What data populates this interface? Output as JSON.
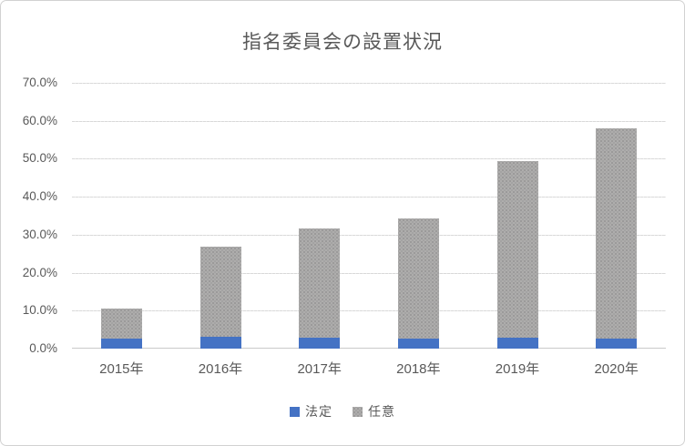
{
  "chart_data": {
    "type": "bar",
    "stacked": true,
    "title": "指名委員会の設置状況",
    "categories": [
      "2015年",
      "2016年",
      "2017年",
      "2018年",
      "2019年",
      "2020年"
    ],
    "series": [
      {
        "name": "法定",
        "color": "#4472C4",
        "values": [
          2.7,
          3.0,
          2.8,
          2.7,
          2.8,
          2.7
        ]
      },
      {
        "name": "任意",
        "color": "#ACACAC",
        "values": [
          7.8,
          23.8,
          28.8,
          31.5,
          46.7,
          55.3
        ]
      }
    ],
    "totals": [
      10.5,
      26.8,
      31.6,
      34.2,
      49.5,
      58.0
    ],
    "ylim": [
      0,
      70
    ],
    "ytick_step": 10,
    "ytick_labels": [
      "0.0%",
      "10.0%",
      "20.0%",
      "30.0%",
      "40.0%",
      "50.0%",
      "60.0%",
      "70.0%"
    ],
    "grid": true,
    "legend_position": "bottom",
    "colors": {
      "grid": "#D9D9D9",
      "axis_text": "#595959",
      "title_text": "#595959"
    }
  }
}
